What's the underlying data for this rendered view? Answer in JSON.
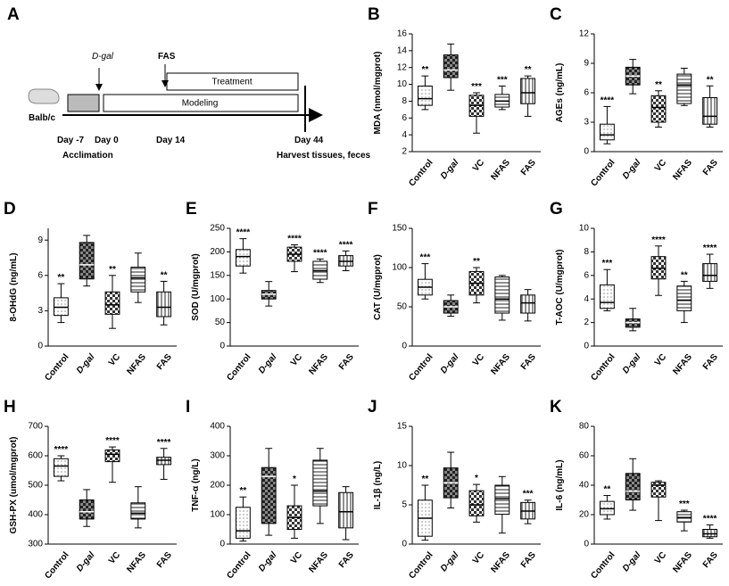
{
  "panel_a": {
    "label": "A",
    "strain": "Balb/c",
    "drug1": "D-gal",
    "drug2": "FAS",
    "phase1": "Treatment",
    "phase2": "Modeling",
    "days": [
      "Day -7",
      "Day 0",
      "Day 14",
      "Day 44"
    ],
    "acclimation": "Acclimation",
    "harvest": "Harvest tissues, feces"
  },
  "chart_data": [
    {
      "type": "box",
      "label": "B",
      "y_label": "MDA (nmol/mgprot)",
      "categories": [
        "Control",
        "D-gal",
        "VC",
        "NFAS",
        "FAS"
      ],
      "ylim": [
        2,
        16
      ],
      "yticks": [
        2,
        4,
        6,
        8,
        10,
        12,
        14,
        16
      ],
      "boxes": [
        {
          "min": 7,
          "q1": 7.5,
          "median": 8.3,
          "q3": 9.8,
          "max": 11
        },
        {
          "min": 9.3,
          "q1": 10.8,
          "median": 11.7,
          "q3": 13.5,
          "max": 14.8
        },
        {
          "min": 4.2,
          "q1": 6.2,
          "median": 7.5,
          "q3": 8.7,
          "max": 9
        },
        {
          "min": 7,
          "q1": 7.3,
          "median": 8,
          "q3": 8.8,
          "max": 9.8
        },
        {
          "min": 6.2,
          "q1": 7.7,
          "median": 9,
          "q3": 10.7,
          "max": 11
        }
      ],
      "stars": [
        "**",
        null,
        "***",
        "***",
        "**"
      ]
    },
    {
      "type": "box",
      "label": "C",
      "y_label": "AGEs (ng/mL)",
      "categories": [
        "Control",
        "D-gal",
        "VC",
        "NFAS",
        "FAS"
      ],
      "ylim": [
        0,
        12
      ],
      "yticks": [
        0,
        3,
        6,
        9,
        12
      ],
      "boxes": [
        {
          "min": 0.8,
          "q1": 1.2,
          "median": 1.7,
          "q3": 2.8,
          "max": 4.6
        },
        {
          "min": 5.9,
          "q1": 6.8,
          "median": 7.7,
          "q3": 8.6,
          "max": 9.4
        },
        {
          "min": 2.5,
          "q1": 3.0,
          "median": 4.5,
          "q3": 5.7,
          "max": 6.2
        },
        {
          "min": 4.7,
          "q1": 4.9,
          "median": 6.8,
          "q3": 7.9,
          "max": 8.5
        },
        {
          "min": 2.5,
          "q1": 2.8,
          "median": 3.6,
          "q3": 5.5,
          "max": 6.7
        }
      ],
      "stars": [
        "****",
        null,
        "**",
        null,
        "**"
      ]
    },
    {
      "type": "box",
      "label": "D",
      "y_label": "8-OHdG (ng/mL)",
      "categories": [
        "Control",
        "D-gal",
        "VC",
        "NFAS",
        "FAS"
      ],
      "ylim": [
        0,
        10
      ],
      "yticks": [
        0,
        3,
        6,
        9
      ],
      "boxes": [
        {
          "min": 2,
          "q1": 2.6,
          "median": 3.3,
          "q3": 4.1,
          "max": 5.3
        },
        {
          "min": 5.1,
          "q1": 5.7,
          "median": 6.9,
          "q3": 8.8,
          "max": 9.4
        },
        {
          "min": 1.5,
          "q1": 2.7,
          "median": 3.5,
          "q3": 4.6,
          "max": 6
        },
        {
          "min": 3.7,
          "q1": 4.6,
          "median": 5.8,
          "q3": 6.7,
          "max": 7.9
        },
        {
          "min": 1.8,
          "q1": 2.5,
          "median": 3.3,
          "q3": 4.6,
          "max": 5.5
        }
      ],
      "stars": [
        "**",
        null,
        "**",
        null,
        "**"
      ]
    },
    {
      "type": "box",
      "label": "E",
      "y_label": "SOD (U/mgprot)",
      "categories": [
        "Control",
        "D-gal",
        "VC",
        "NFAS",
        "FAS"
      ],
      "ylim": [
        0,
        250
      ],
      "yticks": [
        0,
        50,
        100,
        150,
        200,
        250
      ],
      "boxes": [
        {
          "min": 155,
          "q1": 170,
          "median": 190,
          "q3": 205,
          "max": 228
        },
        {
          "min": 85,
          "q1": 100,
          "median": 110,
          "q3": 118,
          "max": 137
        },
        {
          "min": 158,
          "q1": 180,
          "median": 195,
          "q3": 210,
          "max": 215
        },
        {
          "min": 135,
          "q1": 142,
          "median": 160,
          "q3": 180,
          "max": 185
        },
        {
          "min": 160,
          "q1": 170,
          "median": 180,
          "q3": 192,
          "max": 202
        }
      ],
      "stars": [
        "****",
        null,
        "****",
        "****",
        "****"
      ]
    },
    {
      "type": "box",
      "label": "F",
      "y_label": "CAT (U/mgprot)",
      "categories": [
        "Control",
        "D-gal",
        "VC",
        "NFAS",
        "FAS"
      ],
      "ylim": [
        0,
        150
      ],
      "yticks": [
        0,
        50,
        100,
        150
      ],
      "boxes": [
        {
          "min": 60,
          "q1": 65,
          "median": 75,
          "q3": 85,
          "max": 105
        },
        {
          "min": 38,
          "q1": 42,
          "median": 50,
          "q3": 58,
          "max": 65
        },
        {
          "min": 55,
          "q1": 65,
          "median": 80,
          "q3": 95,
          "max": 100
        },
        {
          "min": 33,
          "q1": 42,
          "median": 60,
          "q3": 88,
          "max": 90
        },
        {
          "min": 32,
          "q1": 42,
          "median": 55,
          "q3": 65,
          "max": 72
        }
      ],
      "stars": [
        "***",
        null,
        "**",
        null,
        null
      ]
    },
    {
      "type": "box",
      "label": "G",
      "y_label": "T-AOC (U/mgprot)",
      "categories": [
        "Control",
        "D-gal",
        "VC",
        "NFAS",
        "FAS"
      ],
      "ylim": [
        0,
        10
      ],
      "yticks": [
        0,
        2,
        4,
        6,
        8,
        10
      ],
      "boxes": [
        {
          "min": 3,
          "q1": 3.2,
          "median": 3.7,
          "q3": 5.2,
          "max": 6.5
        },
        {
          "min": 1.3,
          "q1": 1.6,
          "median": 2,
          "q3": 2.3,
          "max": 3.2
        },
        {
          "min": 4.3,
          "q1": 5.7,
          "median": 6.6,
          "q3": 7.6,
          "max": 8.5
        },
        {
          "min": 2,
          "q1": 3,
          "median": 3.9,
          "q3": 5.1,
          "max": 5.5
        },
        {
          "min": 4.9,
          "q1": 5.5,
          "median": 6,
          "q3": 7,
          "max": 7.8
        }
      ],
      "stars": [
        "***",
        null,
        "****",
        "**",
        "****"
      ]
    },
    {
      "type": "box",
      "label": "H",
      "y_label": "GSH-PX (umol/mgprot)",
      "categories": [
        "Control",
        "D-gal",
        "VC",
        "NFAS",
        "FAS"
      ],
      "ylim": [
        300,
        700
      ],
      "yticks": [
        300,
        400,
        500,
        600,
        700
      ],
      "boxes": [
        {
          "min": 515,
          "q1": 530,
          "median": 565,
          "q3": 590,
          "max": 600
        },
        {
          "min": 360,
          "q1": 385,
          "median": 410,
          "q3": 450,
          "max": 485
        },
        {
          "min": 510,
          "q1": 580,
          "median": 605,
          "q3": 620,
          "max": 630
        },
        {
          "min": 355,
          "q1": 385,
          "median": 405,
          "q3": 440,
          "max": 495
        },
        {
          "min": 520,
          "q1": 570,
          "median": 585,
          "q3": 595,
          "max": 625
        }
      ],
      "stars": [
        "****",
        null,
        "****",
        null,
        "****"
      ]
    },
    {
      "type": "box",
      "label": "I",
      "y_label": "TNF-α (ng/L)",
      "categories": [
        "Control",
        "D-gal",
        "VC",
        "NFAS",
        "FAS"
      ],
      "ylim": [
        0,
        400
      ],
      "yticks": [
        0,
        100,
        200,
        300,
        400
      ],
      "boxes": [
        {
          "min": 10,
          "q1": 20,
          "median": 45,
          "q3": 125,
          "max": 160
        },
        {
          "min": 30,
          "q1": 70,
          "median": 230,
          "q3": 260,
          "max": 325
        },
        {
          "min": 20,
          "q1": 50,
          "median": 90,
          "q3": 130,
          "max": 200
        },
        {
          "min": 70,
          "q1": 130,
          "median": 180,
          "q3": 285,
          "max": 325
        },
        {
          "min": 15,
          "q1": 55,
          "median": 110,
          "q3": 175,
          "max": 195
        }
      ],
      "stars": [
        "**",
        null,
        "*",
        null,
        null
      ]
    },
    {
      "type": "box",
      "label": "J",
      "y_label": "IL-1β (ng/L)",
      "categories": [
        "Control",
        "D-gal",
        "VC",
        "NFAS",
        "FAS"
      ],
      "ylim": [
        0,
        15
      ],
      "yticks": [
        0,
        5,
        10,
        15
      ],
      "boxes": [
        {
          "min": 0.5,
          "q1": 1,
          "median": 3.3,
          "q3": 5.6,
          "max": 7.5
        },
        {
          "min": 4.6,
          "q1": 5.9,
          "median": 7.8,
          "q3": 9.7,
          "max": 11.7
        },
        {
          "min": 2.8,
          "q1": 3.6,
          "median": 5,
          "q3": 6.8,
          "max": 7.6
        },
        {
          "min": 1.4,
          "q1": 3.8,
          "median": 5.8,
          "q3": 7.5,
          "max": 8.6
        },
        {
          "min": 2.6,
          "q1": 3.2,
          "median": 4.2,
          "q3": 5.3,
          "max": 5.6
        }
      ],
      "stars": [
        "**",
        null,
        "*",
        null,
        "***"
      ]
    },
    {
      "type": "box",
      "label": "K",
      "y_label": "IL-6 (ng/mL)",
      "categories": [
        "Control",
        "D-gal",
        "VC",
        "NFAS",
        "FAS"
      ],
      "ylim": [
        0,
        80
      ],
      "yticks": [
        0,
        20,
        40,
        60,
        80
      ],
      "boxes": [
        {
          "min": 17,
          "q1": 20,
          "median": 24,
          "q3": 29,
          "max": 33
        },
        {
          "min": 23,
          "q1": 30,
          "median": 36,
          "q3": 48,
          "max": 58
        },
        {
          "min": 16,
          "q1": 32,
          "median": 40,
          "q3": 42,
          "max": 43
        },
        {
          "min": 9,
          "q1": 15,
          "median": 18,
          "q3": 22,
          "max": 23
        },
        {
          "min": 4,
          "q1": 5,
          "median": 7,
          "q3": 10,
          "max": 13
        }
      ],
      "stars": [
        "**",
        null,
        null,
        "***",
        "****"
      ]
    }
  ]
}
